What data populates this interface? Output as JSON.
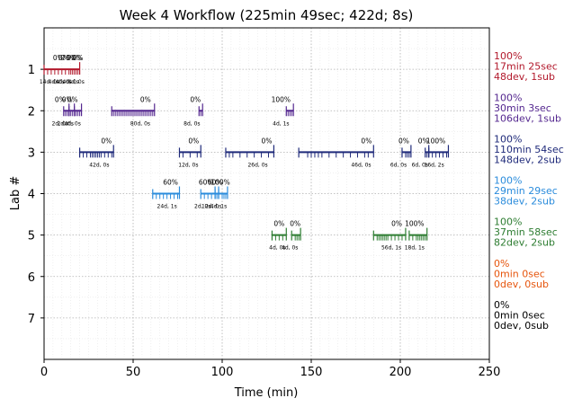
{
  "chart_data": {
    "type": "timeline",
    "title": "Week 4 Workflow (225min 49sec; 422d; 8s)",
    "xlabel": "Time (min)",
    "ylabel": "Lab #",
    "xlim": [
      0,
      250
    ],
    "ylim": [
      0,
      8
    ],
    "xticks": [
      0,
      50,
      100,
      150,
      200,
      250
    ],
    "yticks": [
      1,
      2,
      3,
      4,
      5,
      6,
      7
    ],
    "grid": true,
    "labs": [
      {
        "lab": 1,
        "color": "#b2182b",
        "summary": [
          "100%",
          "17min 25sec",
          "48dev, 1sub"
        ],
        "sessions": [
          {
            "start": 0,
            "end": 20,
            "ticks": [
              2,
              4,
              6,
              8,
              10,
              12,
              14,
              15,
              16,
              17,
              18,
              19
            ],
            "pct_labels": [
              {
                "x": 8,
                "text": "0%"
              },
              {
                "x": 11,
                "text": "0%"
              },
              {
                "x": 14,
                "text": "70%"
              },
              {
                "x": 17,
                "text": "90%"
              },
              {
                "x": 19,
                "text": "0%"
              }
            ],
            "bottom_labels": [
              {
                "x": 3,
                "text": "14d, 0s"
              },
              {
                "x": 7,
                "text": "4d, 0s"
              },
              {
                "x": 11,
                "text": "4d, 0s"
              },
              {
                "x": 15,
                "text": "4d, 0s"
              },
              {
                "x": 18,
                "text": "4d, 0s"
              }
            ]
          }
        ]
      },
      {
        "lab": 2,
        "color": "#54278f",
        "summary": [
          "100%",
          "30min 3sec",
          "106dev, 1sub"
        ],
        "sessions": [
          {
            "start": 11,
            "end": 14,
            "ticks": [
              12,
              13
            ],
            "pct_labels": [
              {
                "x": 9,
                "text": "0%"
              }
            ],
            "bottom_labels": [
              {
                "x": 9,
                "text": "2d, 0s"
              }
            ]
          },
          {
            "start": 14,
            "end": 17,
            "ticks": [
              15,
              16
            ],
            "pct_labels": [
              {
                "x": 13,
                "text": "0%"
              }
            ],
            "bottom_labels": [
              {
                "x": 12,
                "text": "2d, 0s"
              }
            ]
          },
          {
            "start": 17,
            "end": 21,
            "ticks": [
              18,
              19,
              20
            ],
            "pct_labels": [
              {
                "x": 16,
                "text": "0%"
              }
            ],
            "bottom_labels": [
              {
                "x": 16,
                "text": "4d, 0s"
              }
            ]
          },
          {
            "start": 38,
            "end": 62,
            "ticks": [
              39,
              40,
              41,
              42,
              43,
              44,
              45,
              46,
              47,
              48,
              49,
              50,
              51,
              52,
              53,
              54,
              55,
              56,
              57,
              58,
              59,
              60,
              61
            ],
            "pct_labels": [
              {
                "x": 57,
                "text": "0%"
              }
            ],
            "bottom_labels": [
              {
                "x": 54,
                "text": "80d, 0s"
              }
            ]
          },
          {
            "start": 87,
            "end": 89,
            "ticks": [
              88
            ],
            "pct_labels": [
              {
                "x": 85,
                "text": "0%"
              }
            ],
            "bottom_labels": [
              {
                "x": 83,
                "text": "8d, 0s"
              }
            ]
          },
          {
            "start": 136,
            "end": 140,
            "ticks": [
              137,
              138,
              139
            ],
            "pct_labels": [
              {
                "x": 133,
                "text": "100%"
              }
            ],
            "bottom_labels": [
              {
                "x": 133,
                "text": "4d, 1s"
              }
            ]
          }
        ]
      },
      {
        "lab": 3,
        "color": "#1f2a7a",
        "summary": [
          "100%",
          "110min 54sec",
          "148dev, 2sub"
        ],
        "sessions": [
          {
            "start": 20,
            "end": 39,
            "ticks": [
              22,
              24,
              26,
              27,
              28,
              29,
              30,
              31,
              32,
              34,
              36,
              38
            ],
            "pct_labels": [
              {
                "x": 35,
                "text": "0%"
              }
            ],
            "bottom_labels": [
              {
                "x": 31,
                "text": "42d, 0s"
              }
            ]
          },
          {
            "start": 76,
            "end": 88,
            "ticks": [
              78,
              82,
              86
            ],
            "pct_labels": [
              {
                "x": 84,
                "text": "0%"
              }
            ],
            "bottom_labels": [
              {
                "x": 81,
                "text": "12d, 0s"
              }
            ]
          },
          {
            "start": 102,
            "end": 129,
            "ticks": [
              104,
              106,
              110,
              114,
              118,
              122,
              126
            ],
            "pct_labels": [
              {
                "x": 125,
                "text": "0%"
              }
            ],
            "bottom_labels": [
              {
                "x": 120,
                "text": "26d, 0s"
              }
            ]
          },
          {
            "start": 143,
            "end": 185,
            "ticks": [
              148,
              150,
              152,
              154,
              156,
              160,
              164,
              168,
              172,
              176,
              180,
              182
            ],
            "pct_labels": [
              {
                "x": 181,
                "text": "0%"
              }
            ],
            "bottom_labels": [
              {
                "x": 178,
                "text": "46d, 0s"
              }
            ]
          },
          {
            "start": 201,
            "end": 206,
            "ticks": [
              203,
              204,
              205
            ],
            "pct_labels": [
              {
                "x": 202,
                "text": "0%"
              }
            ],
            "bottom_labels": [
              {
                "x": 199,
                "text": "6d, 0s"
              }
            ]
          },
          {
            "start": 214,
            "end": 216,
            "ticks": [
              215
            ],
            "pct_labels": [
              {
                "x": 213,
                "text": "0%"
              }
            ],
            "bottom_labels": [
              {
                "x": 211,
                "text": "6d, 0s"
              }
            ]
          },
          {
            "start": 216,
            "end": 227,
            "ticks": [
              218,
              220,
              222,
              224,
              226
            ],
            "pct_labels": [
              {
                "x": 220,
                "text": "100%"
              }
            ],
            "bottom_labels": [
              {
                "x": 219,
                "text": "16d, 2s"
              }
            ]
          }
        ]
      },
      {
        "lab": 4,
        "color": "#2b8cdc",
        "summary": [
          "100%",
          "29min 29sec",
          "38dev, 2sub"
        ],
        "sessions": [
          {
            "start": 61,
            "end": 76,
            "ticks": [
              63,
              65,
              67,
              69,
              71,
              73,
              75
            ],
            "pct_labels": [
              {
                "x": 71,
                "text": "60%"
              }
            ],
            "bottom_labels": [
              {
                "x": 69,
                "text": "24d, 1s"
              }
            ]
          },
          {
            "start": 88,
            "end": 96,
            "ticks": [
              90,
              92,
              94
            ],
            "pct_labels": [
              {
                "x": 91,
                "text": "60%"
              }
            ],
            "bottom_labels": [
              {
                "x": 89,
                "text": "2d, 0s"
              }
            ]
          },
          {
            "start": 96,
            "end": 98,
            "ticks": [
              97
            ],
            "pct_labels": [
              {
                "x": 96,
                "text": "60%"
              }
            ],
            "bottom_labels": [
              {
                "x": 94,
                "text": "12d, 0s"
              }
            ]
          },
          {
            "start": 98,
            "end": 103,
            "ticks": [
              100,
              101,
              102
            ],
            "pct_labels": [
              {
                "x": 99,
                "text": "100%"
              }
            ],
            "bottom_labels": [
              {
                "x": 98,
                "text": "4d, 1s"
              }
            ]
          }
        ]
      },
      {
        "lab": 5,
        "color": "#2e7d32",
        "summary": [
          "100%",
          "37min 58sec",
          "82dev, 2sub"
        ],
        "sessions": [
          {
            "start": 128,
            "end": 136,
            "ticks": [
              130,
              132,
              134
            ],
            "pct_labels": [
              {
                "x": 132,
                "text": "0%"
              }
            ],
            "bottom_labels": [
              {
                "x": 131,
                "text": "4d, 0s"
              }
            ]
          },
          {
            "start": 139,
            "end": 144,
            "ticks": [
              141,
              142,
              143
            ],
            "pct_labels": [
              {
                "x": 141,
                "text": "0%"
              }
            ],
            "bottom_labels": [
              {
                "x": 138,
                "text": "4d, 0s"
              }
            ]
          },
          {
            "start": 185,
            "end": 203,
            "ticks": [
              187,
              188,
              189,
              190,
              191,
              192,
              193,
              195,
              197,
              199,
              201
            ],
            "pct_labels": [
              {
                "x": 198,
                "text": "0%"
              }
            ],
            "bottom_labels": [
              {
                "x": 195,
                "text": "56d, 1s"
              }
            ]
          },
          {
            "start": 205,
            "end": 215,
            "ticks": [
              207,
              209,
              210,
              211,
              212,
              213,
              214
            ],
            "pct_labels": [
              {
                "x": 208,
                "text": "100%"
              }
            ],
            "bottom_labels": [
              {
                "x": 208,
                "text": "18d, 1s"
              }
            ]
          }
        ]
      },
      {
        "lab": 6,
        "color": "#e6550d",
        "summary": [
          "0%",
          "0min 0sec",
          "0dev, 0sub"
        ],
        "sessions": []
      },
      {
        "lab": 7,
        "color": "#000000",
        "summary": [
          "0%",
          "0min 0sec",
          "0dev, 0sub"
        ],
        "sessions": []
      }
    ]
  }
}
